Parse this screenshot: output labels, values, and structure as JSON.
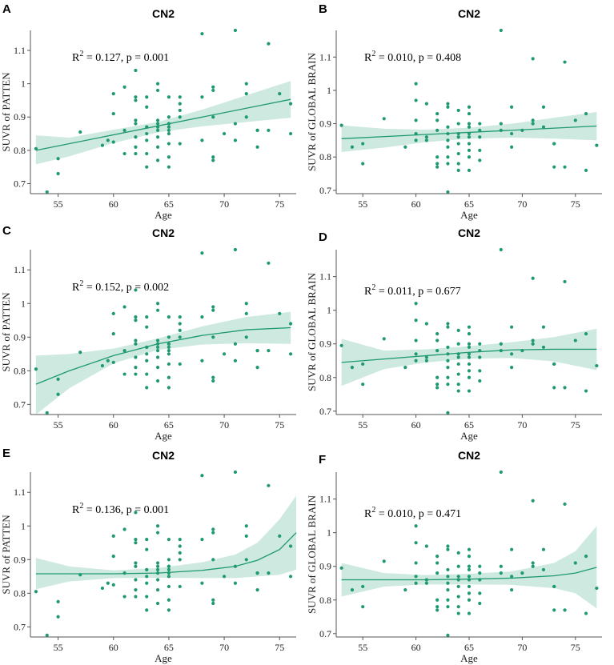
{
  "chart_data": [
    {
      "panel": "A",
      "type": "scatter",
      "title": "CN2",
      "xlabel": "Age",
      "ylabel": "SUVR of PATTEN",
      "xlim": [
        52.5,
        76.5
      ],
      "ylim": [
        0.67,
        1.16
      ],
      "xticks": [
        "55",
        "60",
        "65",
        "70",
        "75"
      ],
      "yticks": [
        "0.7",
        "0.8",
        "0.9",
        "1",
        "1.1"
      ],
      "annotation": {
        "r2": "0.127",
        "p": "0.001"
      },
      "fit": {
        "x": [
          53,
          76
        ],
        "y": [
          0.8,
          0.953
        ]
      },
      "ci": {
        "x": [
          53,
          56,
          60,
          64,
          68,
          72,
          76
        ],
        "upper": [
          0.845,
          0.838,
          0.862,
          0.885,
          0.922,
          0.965,
          1.008
        ],
        "lower": [
          0.758,
          0.782,
          0.822,
          0.854,
          0.872,
          0.885,
          0.898
        ]
      }
    },
    {
      "panel": "B",
      "type": "scatter",
      "title": "CN2",
      "xlabel": "Age",
      "ylabel": "SUVR of GLOBAL BRAIN",
      "xlim": [
        52.5,
        77.5
      ],
      "ylim": [
        0.69,
        1.18
      ],
      "xticks": [
        "55",
        "60",
        "65",
        "70",
        "75"
      ],
      "yticks": [
        "0.7",
        "0.8",
        "0.9",
        "1",
        "1.1"
      ],
      "annotation": {
        "r2": "0.010",
        "p": "0.408"
      },
      "fit": {
        "x": [
          53,
          77
        ],
        "y": [
          0.855,
          0.893
        ]
      },
      "ci": {
        "x": [
          53,
          57,
          61,
          65,
          69,
          73,
          77
        ],
        "upper": [
          0.895,
          0.885,
          0.882,
          0.888,
          0.9,
          0.918,
          0.935
        ],
        "lower": [
          0.815,
          0.828,
          0.845,
          0.855,
          0.858,
          0.855,
          0.85
        ]
      }
    },
    {
      "panel": "C",
      "type": "scatter",
      "title": "CN2",
      "xlabel": "Age",
      "ylabel": "SUVR of PATTEN",
      "xlim": [
        52.5,
        76.5
      ],
      "ylim": [
        0.67,
        1.16
      ],
      "xticks": [
        "55",
        "60",
        "65",
        "70",
        "75"
      ],
      "yticks": [
        "0.7",
        "0.8",
        "0.9",
        "1",
        "1.1"
      ],
      "annotation": {
        "r2": "0.152",
        "p": "0.002"
      },
      "fit": {
        "x": [
          53,
          56,
          60,
          64,
          68,
          72,
          76
        ],
        "y": [
          0.76,
          0.8,
          0.845,
          0.88,
          0.905,
          0.922,
          0.928
        ]
      },
      "ci": {
        "x": [
          53,
          56,
          60,
          64,
          68,
          72,
          76
        ],
        "upper": [
          0.845,
          0.85,
          0.866,
          0.896,
          0.932,
          0.96,
          0.975
        ],
        "lower": [
          0.67,
          0.748,
          0.822,
          0.862,
          0.878,
          0.882,
          0.88
        ]
      }
    },
    {
      "panel": "D",
      "type": "scatter",
      "title": "CN2",
      "xlabel": "Age",
      "ylabel": "SUVR of GLOBAL BRAIN",
      "xlim": [
        52.5,
        77.5
      ],
      "ylim": [
        0.69,
        1.18
      ],
      "xticks": [
        "55",
        "60",
        "65",
        "70",
        "75"
      ],
      "yticks": [
        "0.7",
        "0.8",
        "0.9",
        "1",
        "1.1"
      ],
      "annotation": {
        "r2": "0.011",
        "p": "0.677"
      },
      "fit": {
        "x": [
          53,
          57,
          61,
          65,
          69,
          73,
          77
        ],
        "y": [
          0.845,
          0.855,
          0.865,
          0.875,
          0.882,
          0.884,
          0.884
        ]
      },
      "ci": {
        "x": [
          53,
          57,
          61,
          65,
          69,
          73,
          77
        ],
        "upper": [
          0.915,
          0.88,
          0.884,
          0.893,
          0.905,
          0.92,
          0.945
        ],
        "lower": [
          0.775,
          0.825,
          0.845,
          0.856,
          0.858,
          0.848,
          0.822
        ]
      }
    },
    {
      "panel": "E",
      "type": "scatter",
      "title": "CN2",
      "xlabel": "Age",
      "ylabel": "SUVR of PATTEN",
      "xlim": [
        52.5,
        76.5
      ],
      "ylim": [
        0.67,
        1.16
      ],
      "xticks": [
        "55",
        "60",
        "65",
        "70",
        "75"
      ],
      "yticks": [
        "0.7",
        "0.8",
        "0.9",
        "1",
        "1.1"
      ],
      "annotation": {
        "r2": "0.136",
        "p": "0.001"
      },
      "fit": {
        "x": [
          53,
          56,
          60,
          64,
          68,
          71,
          73,
          75,
          76.5
        ],
        "y": [
          0.858,
          0.858,
          0.858,
          0.86,
          0.868,
          0.88,
          0.898,
          0.93,
          0.98
        ]
      },
      "ci": {
        "x": [
          53,
          56,
          60,
          64,
          68,
          71,
          73,
          75,
          76.5
        ],
        "upper": [
          0.905,
          0.88,
          0.868,
          0.875,
          0.892,
          0.915,
          0.95,
          1.02,
          1.09
        ],
        "lower": [
          0.812,
          0.835,
          0.845,
          0.846,
          0.845,
          0.845,
          0.85,
          0.855,
          0.87
        ]
      }
    },
    {
      "panel": "F",
      "type": "scatter",
      "title": "CN2",
      "xlabel": "Age",
      "ylabel": "SUVR of GLOBAL BRAIN",
      "xlim": [
        52.5,
        77.5
      ],
      "ylim": [
        0.69,
        1.18
      ],
      "xticks": [
        "55",
        "60",
        "65",
        "70",
        "75"
      ],
      "yticks": [
        "0.7",
        "0.8",
        "0.9",
        "1",
        "1.1"
      ],
      "annotation": {
        "r2": "0.010",
        "p": "0.471"
      },
      "fit": {
        "x": [
          53,
          57,
          61,
          65,
          69,
          73,
          75,
          77
        ],
        "y": [
          0.86,
          0.86,
          0.86,
          0.862,
          0.865,
          0.872,
          0.88,
          0.897
        ]
      },
      "ci": {
        "x": [
          53,
          57,
          61,
          65,
          69,
          73,
          75,
          77
        ],
        "upper": [
          0.91,
          0.88,
          0.874,
          0.878,
          0.885,
          0.91,
          0.945,
          1.02
        ],
        "lower": [
          0.81,
          0.84,
          0.846,
          0.846,
          0.845,
          0.835,
          0.82,
          0.775
        ]
      }
    }
  ],
  "scatter_points": {
    "patten": [
      [
        53,
        0.805
      ],
      [
        54,
        0.675
      ],
      [
        55,
        0.775
      ],
      [
        55,
        0.73
      ],
      [
        57,
        0.855
      ],
      [
        59,
        0.815
      ],
      [
        59.5,
        0.83
      ],
      [
        60,
        0.825
      ],
      [
        60,
        0.91
      ],
      [
        60,
        0.97
      ],
      [
        61,
        0.86
      ],
      [
        61,
        0.99
      ],
      [
        61,
        0.79
      ],
      [
        62,
        1.04
      ],
      [
        62,
        0.84
      ],
      [
        62,
        0.88
      ],
      [
        62,
        0.89
      ],
      [
        62,
        0.95
      ],
      [
        62,
        0.96
      ],
      [
        62,
        0.81
      ],
      [
        62,
        0.79
      ],
      [
        63,
        0.83
      ],
      [
        63,
        0.85
      ],
      [
        63,
        0.87
      ],
      [
        63,
        0.87
      ],
      [
        63,
        0.75
      ],
      [
        63,
        0.93
      ],
      [
        63,
        0.96
      ],
      [
        63,
        0.79
      ],
      [
        64,
        0.84
      ],
      [
        64,
        0.87
      ],
      [
        64,
        0.86
      ],
      [
        64,
        0.89
      ],
      [
        64,
        1.0
      ],
      [
        64,
        0.98
      ],
      [
        64,
        0.81
      ],
      [
        64,
        0.77
      ],
      [
        64,
        0.88
      ],
      [
        65,
        0.82
      ],
      [
        65,
        0.85
      ],
      [
        65,
        0.87
      ],
      [
        65,
        0.88
      ],
      [
        65,
        0.9
      ],
      [
        65,
        0.88
      ],
      [
        65,
        0.75
      ],
      [
        65,
        0.78
      ],
      [
        65,
        0.96
      ],
      [
        65,
        0.86
      ],
      [
        66,
        0.92
      ],
      [
        66,
        0.94
      ],
      [
        66,
        0.96
      ],
      [
        66,
        0.9
      ],
      [
        66,
        0.82
      ],
      [
        68,
        1.15
      ],
      [
        68,
        0.96
      ],
      [
        68,
        0.83
      ],
      [
        69,
        0.78
      ],
      [
        69,
        0.77
      ],
      [
        69,
        0.99
      ],
      [
        69,
        0.98
      ],
      [
        69,
        0.9
      ],
      [
        70,
        0.85
      ],
      [
        71,
        1.16
      ],
      [
        71,
        0.83
      ],
      [
        71,
        0.88
      ],
      [
        72,
        1.0
      ],
      [
        72,
        0.97
      ],
      [
        72,
        0.9
      ],
      [
        73,
        0.86
      ],
      [
        73,
        0.86
      ],
      [
        73,
        0.81
      ],
      [
        74,
        1.12
      ],
      [
        74,
        0.86
      ],
      [
        75,
        0.97
      ],
      [
        76,
        0.85
      ],
      [
        76,
        0.94
      ]
    ],
    "global": [
      [
        53,
        0.895
      ],
      [
        54,
        0.83
      ],
      [
        55,
        0.84
      ],
      [
        55,
        0.78
      ],
      [
        57,
        0.915
      ],
      [
        59,
        0.83
      ],
      [
        60,
        1.02
      ],
      [
        60,
        0.97
      ],
      [
        60,
        0.85
      ],
      [
        60,
        0.87
      ],
      [
        60,
        0.91
      ],
      [
        61,
        0.96
      ],
      [
        61,
        0.86
      ],
      [
        61,
        0.85
      ],
      [
        62,
        0.93
      ],
      [
        62,
        0.91
      ],
      [
        62,
        0.88
      ],
      [
        62,
        0.8
      ],
      [
        62,
        0.78
      ],
      [
        62,
        0.77
      ],
      [
        63,
        0.95
      ],
      [
        63,
        0.96
      ],
      [
        63,
        0.87
      ],
      [
        63,
        0.89
      ],
      [
        63,
        0.83
      ],
      [
        63,
        0.8
      ],
      [
        63,
        0.695
      ],
      [
        63,
        0.78
      ],
      [
        63,
        0.85
      ],
      [
        64,
        0.94
      ],
      [
        64,
        0.9
      ],
      [
        64,
        0.87
      ],
      [
        64,
        0.86
      ],
      [
        64,
        0.81
      ],
      [
        64,
        0.76
      ],
      [
        64,
        0.78
      ],
      [
        64,
        0.84
      ],
      [
        65,
        0.95
      ],
      [
        65,
        0.93
      ],
      [
        65,
        0.9
      ],
      [
        65,
        0.89
      ],
      [
        65,
        0.87
      ],
      [
        65,
        0.86
      ],
      [
        65,
        0.84
      ],
      [
        65,
        0.82
      ],
      [
        65,
        0.8
      ],
      [
        65,
        0.76
      ],
      [
        66,
        0.9
      ],
      [
        66,
        0.88
      ],
      [
        66,
        0.86
      ],
      [
        66,
        0.82
      ],
      [
        66,
        0.79
      ],
      [
        68,
        1.18
      ],
      [
        68,
        0.9
      ],
      [
        68,
        0.88
      ],
      [
        69,
        0.95
      ],
      [
        69,
        0.87
      ],
      [
        69,
        0.83
      ],
      [
        70,
        0.88
      ],
      [
        71,
        1.095
      ],
      [
        71,
        0.91
      ],
      [
        71,
        0.9
      ],
      [
        72,
        0.95
      ],
      [
        72,
        0.89
      ],
      [
        73,
        0.84
      ],
      [
        73,
        0.84
      ],
      [
        73,
        0.77
      ],
      [
        74,
        1.085
      ],
      [
        74,
        0.77
      ],
      [
        75,
        0.91
      ],
      [
        76,
        0.93
      ],
      [
        76,
        0.76
      ],
      [
        77,
        0.835
      ]
    ]
  }
}
